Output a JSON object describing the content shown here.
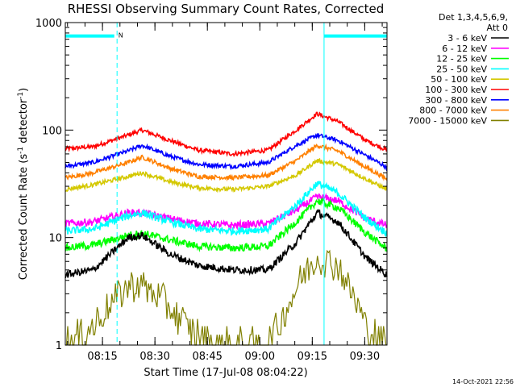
{
  "chart_data": {
    "type": "line",
    "title": "RHESSI Observing Summary Count Rates, Corrected",
    "xlabel": "Start Time (17-Jul-08 08:04:22)",
    "ylabel_main": "Corrected Count Rate (s",
    "ylabel_sup1": "-1",
    "ylabel_mid": " detector",
    "ylabel_sup2": "-1",
    "ylabel_end": ")",
    "yscale": "log",
    "ylim": [
      1,
      1000
    ],
    "xlim_minutes": [
      0,
      92
    ],
    "xticks": [
      {
        "label": "08:15",
        "minute": 10.63
      },
      {
        "label": "08:30",
        "minute": 25.63
      },
      {
        "label": "08:45",
        "minute": 40.63
      },
      {
        "label": "09:00",
        "minute": 55.63
      },
      {
        "label": "09:15",
        "minute": 70.63
      },
      {
        "label": "09:30",
        "minute": 85.63
      }
    ],
    "yticks": [
      {
        "label": "1",
        "value": 1
      },
      {
        "label": "10",
        "value": 10
      },
      {
        "label": "100",
        "value": 100
      },
      {
        "label": "1000",
        "value": 1000
      }
    ],
    "legend": {
      "placement": "right",
      "header1": "Det 1,3,4,5,6,9,",
      "header2": "Att 0",
      "entries": [
        {
          "label": "3 - 6 keV",
          "color": "#000000"
        },
        {
          "label": "6 - 12 keV",
          "color": "#ff00ff"
        },
        {
          "label": "12 - 25 keV",
          "color": "#00ff00"
        },
        {
          "label": "25 - 50 keV",
          "color": "#00ffff"
        },
        {
          "label": "50 - 100 keV",
          "color": "#d4c800"
        },
        {
          "label": "100 - 300 keV",
          "color": "#ff0000"
        },
        {
          "label": "300 - 800 keV",
          "color": "#0000ff"
        },
        {
          "label": "800 - 7000 keV",
          "color": "#ff8000"
        },
        {
          "label": "7000 - 15000 keV",
          "color": "#808000"
        }
      ]
    },
    "series": [
      {
        "color": "#ff0000",
        "minutes": [
          0,
          8,
          18,
          22,
          30,
          38,
          48,
          58,
          66,
          72,
          78,
          86,
          92
        ],
        "values": [
          67,
          70,
          90,
          100,
          80,
          65,
          60,
          65,
          100,
          142,
          120,
          80,
          65
        ]
      },
      {
        "color": "#0000ff",
        "minutes": [
          0,
          8,
          18,
          22,
          30,
          38,
          48,
          58,
          66,
          72,
          78,
          86,
          92
        ],
        "values": [
          46,
          50,
          64,
          72,
          57,
          48,
          46,
          50,
          72,
          90,
          80,
          58,
          45
        ]
      },
      {
        "color": "#ff8000",
        "minutes": [
          0,
          8,
          18,
          22,
          30,
          38,
          48,
          58,
          66,
          72,
          78,
          86,
          92
        ],
        "values": [
          36,
          40,
          50,
          56,
          44,
          37,
          36,
          38,
          52,
          72,
          64,
          45,
          35
        ]
      },
      {
        "color": "#d4c800",
        "minutes": [
          0,
          8,
          18,
          22,
          30,
          38,
          48,
          58,
          66,
          72,
          78,
          86,
          92
        ],
        "values": [
          28,
          31,
          37,
          40,
          33,
          29,
          28,
          30,
          38,
          52,
          48,
          35,
          28
        ]
      },
      {
        "color": "#ff00ff",
        "minutes": [
          0,
          8,
          18,
          22,
          30,
          38,
          48,
          58,
          66,
          72,
          78,
          86,
          92
        ],
        "values": [
          13.5,
          14,
          17,
          17,
          15,
          13.5,
          13,
          13.5,
          18,
          24,
          22,
          15,
          13
        ]
      },
      {
        "color": "#00ffff",
        "minutes": [
          0,
          8,
          18,
          22,
          30,
          38,
          48,
          58,
          66,
          72,
          78,
          86,
          92
        ],
        "values": [
          11.5,
          12,
          16,
          17,
          14,
          12,
          11.5,
          12,
          20,
          32,
          26,
          15,
          11
        ]
      },
      {
        "color": "#00ff00",
        "minutes": [
          0,
          8,
          18,
          22,
          30,
          38,
          48,
          58,
          66,
          72,
          78,
          86,
          92
        ],
        "values": [
          8,
          8.5,
          10.5,
          11,
          9.5,
          8.3,
          8,
          8.3,
          14,
          22,
          19,
          11,
          7.8
        ]
      },
      {
        "color": "#000000",
        "minutes": [
          0,
          8,
          18,
          22,
          30,
          38,
          48,
          58,
          66,
          72,
          78,
          86,
          92
        ],
        "values": [
          4.5,
          5,
          10,
          10.5,
          7,
          5.5,
          5,
          5,
          9,
          17,
          14,
          6.5,
          4.5
        ]
      },
      {
        "color": "#808000",
        "minutes": [
          0,
          8,
          14,
          18,
          22,
          28,
          34,
          40,
          46,
          58,
          62,
          68,
          72,
          78,
          82,
          86,
          92
        ],
        "values": [
          1,
          1.5,
          2.6,
          3.6,
          3.6,
          2.6,
          1.6,
          1.1,
          1,
          1,
          1.8,
          4.5,
          6.5,
          5.5,
          3,
          1.5,
          1
        ]
      }
    ],
    "flag_bars": [
      {
        "start": 0,
        "end": 14,
        "value": 750,
        "color": "#00ffff",
        "label": "N"
      },
      {
        "start": 74,
        "end": 92,
        "value": 750,
        "color": "#00ffff",
        "label": ""
      }
    ],
    "vertical_markers": [
      {
        "minute": 0,
        "style": "solid",
        "color": "#00ffff"
      },
      {
        "minute": 14.8,
        "style": "dashed",
        "color": "#00ffff"
      },
      {
        "minute": 74,
        "style": "solid",
        "color": "#00ffff"
      },
      {
        "minute": 92,
        "style": "dashed",
        "color": "#00ffff"
      }
    ]
  },
  "footer_timestamp": "14-Oct-2021 22:56"
}
